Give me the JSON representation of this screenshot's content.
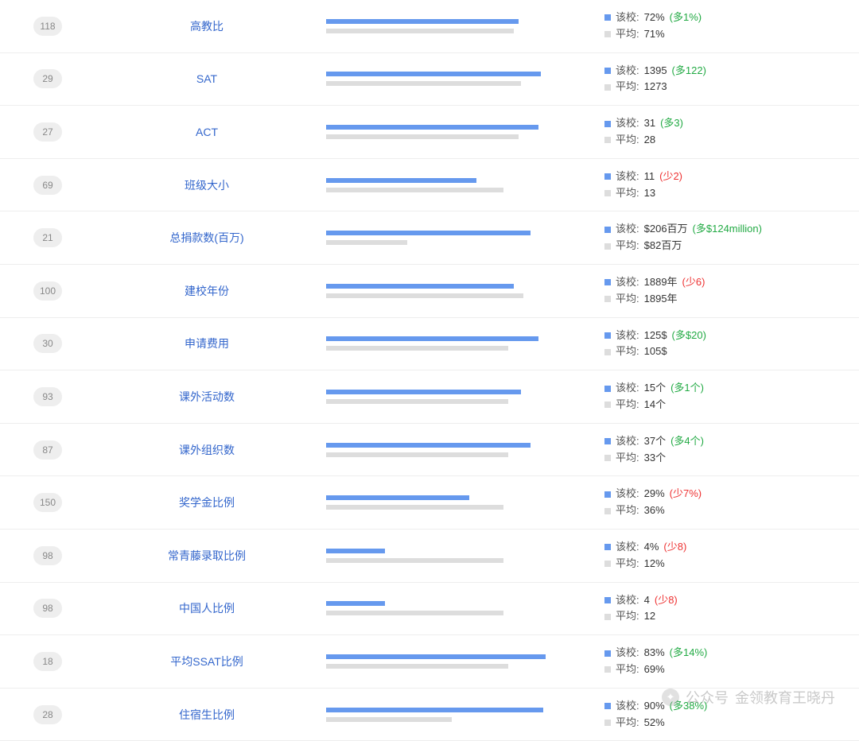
{
  "colors": {
    "school_bar": "#6699ee",
    "avg_bar": "#dddddd",
    "link": "#3366cc",
    "badge_bg": "#eeeeee",
    "badge_text": "#888888",
    "delta_pos": "#22aa44",
    "delta_neg": "#ee3333",
    "border": "#eeeeee",
    "background": "#ffffff"
  },
  "labels": {
    "school_prefix": "该校:",
    "avg_prefix": "平均:"
  },
  "rows": [
    {
      "rank": "118",
      "title": "高教比",
      "school_val": "72%",
      "avg_val": "71%",
      "delta": "(多1%)",
      "delta_sign": "pos",
      "school_bar_pct": 78,
      "avg_bar_pct": 76
    },
    {
      "rank": "29",
      "title": "SAT",
      "school_val": "1395",
      "avg_val": "1273",
      "delta": "(多122)",
      "delta_sign": "pos",
      "school_bar_pct": 87,
      "avg_bar_pct": 79
    },
    {
      "rank": "27",
      "title": "ACT",
      "school_val": "31",
      "avg_val": "28",
      "delta": "(多3)",
      "delta_sign": "pos",
      "school_bar_pct": 86,
      "avg_bar_pct": 78
    },
    {
      "rank": "69",
      "title": "班级大小",
      "school_val": "11",
      "avg_val": "13",
      "delta": "(少2)",
      "delta_sign": "neg",
      "school_bar_pct": 61,
      "avg_bar_pct": 72
    },
    {
      "rank": "21",
      "title": "总捐款数(百万)",
      "school_val": "$206百万",
      "avg_val": "$82百万",
      "delta": "(多$124million)",
      "delta_sign": "pos",
      "school_bar_pct": 83,
      "avg_bar_pct": 33
    },
    {
      "rank": "100",
      "title": "建校年份",
      "school_val": "1889年",
      "avg_val": "1895年",
      "delta": "(少6)",
      "delta_sign": "neg",
      "school_bar_pct": 76,
      "avg_bar_pct": 80
    },
    {
      "rank": "30",
      "title": "申请费用",
      "school_val": "125$",
      "avg_val": "105$",
      "delta": "(多$20)",
      "delta_sign": "pos",
      "school_bar_pct": 86,
      "avg_bar_pct": 74
    },
    {
      "rank": "93",
      "title": "课外活动数",
      "school_val": "15个",
      "avg_val": "14个",
      "delta": "(多1个)",
      "delta_sign": "pos",
      "school_bar_pct": 79,
      "avg_bar_pct": 74
    },
    {
      "rank": "87",
      "title": "课外组织数",
      "school_val": "37个",
      "avg_val": "33个",
      "delta": "(多4个)",
      "delta_sign": "pos",
      "school_bar_pct": 83,
      "avg_bar_pct": 74
    },
    {
      "rank": "150",
      "title": "奖学金比例",
      "school_val": "29%",
      "avg_val": "36%",
      "delta": "(少7%)",
      "delta_sign": "neg",
      "school_bar_pct": 58,
      "avg_bar_pct": 72
    },
    {
      "rank": "98",
      "title": "常青藤录取比例",
      "school_val": "4%",
      "avg_val": "12%",
      "delta": "(少8)",
      "delta_sign": "neg",
      "school_bar_pct": 24,
      "avg_bar_pct": 72
    },
    {
      "rank": "98",
      "title": "中国人比例",
      "school_val": "4",
      "avg_val": "12",
      "delta": "(少8)",
      "delta_sign": "neg",
      "school_bar_pct": 24,
      "avg_bar_pct": 72
    },
    {
      "rank": "18",
      "title": "平均SSAT比例",
      "school_val": "83%",
      "avg_val": "69%",
      "delta": "(多14%)",
      "delta_sign": "pos",
      "school_bar_pct": 89,
      "avg_bar_pct": 74
    },
    {
      "rank": "28",
      "title": "住宿生比例",
      "school_val": "90%",
      "avg_val": "52%",
      "delta": "(多38%)",
      "delta_sign": "pos",
      "school_bar_pct": 88,
      "avg_bar_pct": 51
    }
  ],
  "watermark": {
    "label1": "公众号",
    "label2": "金领教育王晓丹"
  }
}
